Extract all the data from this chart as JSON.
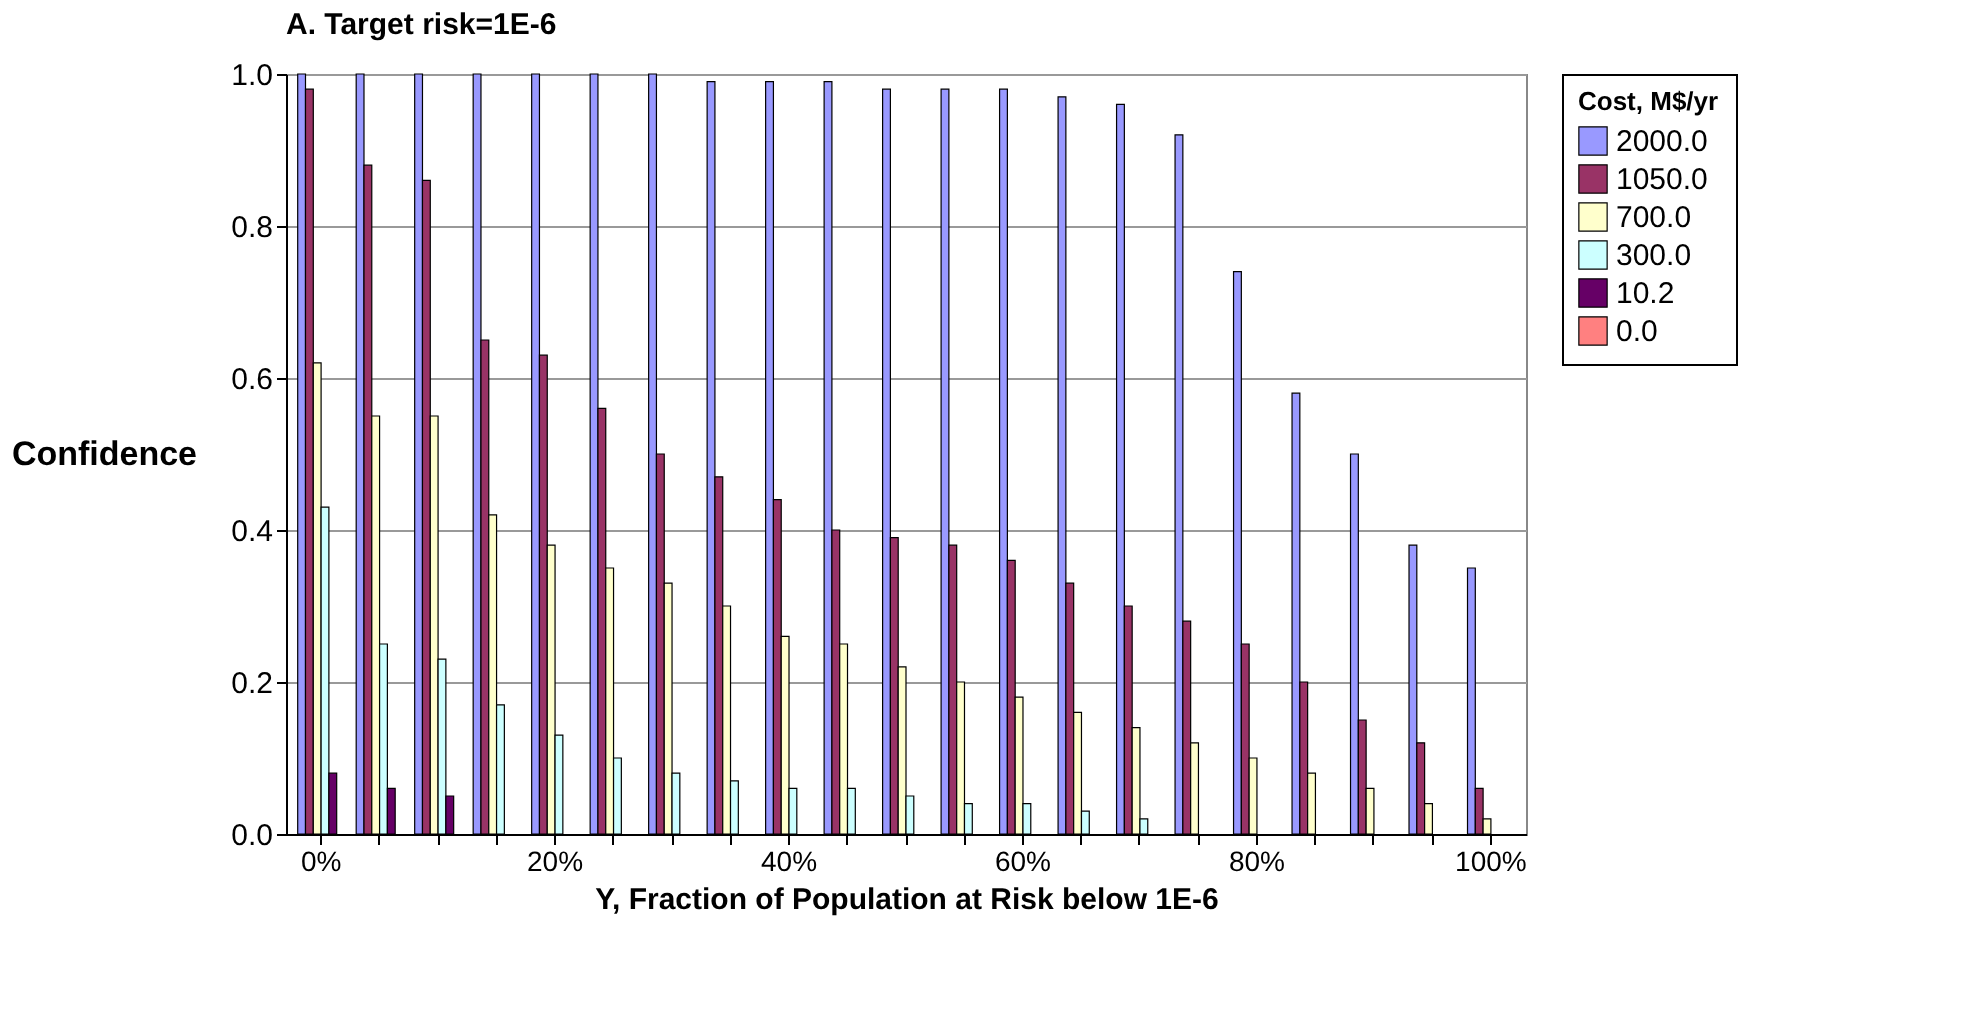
{
  "chart_data": {
    "type": "bar",
    "title": "A. Target risk=1E-6",
    "xlabel": "Y, Fraction of Population at Risk below 1E-6",
    "ylabel": "Confidence",
    "legend_title": "Cost, M$/yr",
    "categories": [
      "0%",
      null,
      null,
      null,
      "20%",
      null,
      null,
      null,
      "40%",
      null,
      null,
      null,
      "60%",
      null,
      null,
      null,
      "80%",
      null,
      null,
      null,
      "100%"
    ],
    "series": [
      {
        "name": "2000.0",
        "color": "#9999ff",
        "values": [
          1.0,
          1.0,
          1.0,
          1.0,
          1.0,
          1.0,
          1.0,
          0.99,
          0.99,
          0.99,
          0.98,
          0.98,
          0.98,
          0.97,
          0.96,
          0.92,
          0.74,
          0.58,
          0.5,
          0.38,
          0.35
        ]
      },
      {
        "name": "1050.0",
        "color": "#993366",
        "values": [
          0.98,
          0.88,
          0.86,
          0.65,
          0.63,
          0.56,
          0.5,
          0.47,
          0.44,
          0.4,
          0.39,
          0.38,
          0.36,
          0.33,
          0.3,
          0.28,
          0.25,
          0.2,
          0.15,
          0.12,
          0.06
        ]
      },
      {
        "name": "700.0",
        "color": "#ffffcc",
        "values": [
          0.62,
          0.55,
          0.55,
          0.42,
          0.38,
          0.35,
          0.33,
          0.3,
          0.26,
          0.25,
          0.22,
          0.2,
          0.18,
          0.16,
          0.14,
          0.12,
          0.1,
          0.08,
          0.06,
          0.04,
          0.02
        ]
      },
      {
        "name": "300.0",
        "color": "#ccffff",
        "values": [
          0.43,
          0.25,
          0.23,
          0.17,
          0.13,
          0.1,
          0.08,
          0.07,
          0.06,
          0.06,
          0.05,
          0.04,
          0.04,
          0.03,
          0.02,
          0.0,
          0.0,
          0.0,
          0.0,
          0.0,
          0.0
        ]
      },
      {
        "name": "10.2",
        "color": "#660066",
        "values": [
          0.08,
          0.06,
          0.05,
          0.0,
          0.0,
          0.0,
          0.0,
          0.0,
          0.0,
          0.0,
          0.0,
          0.0,
          0.0,
          0.0,
          0.0,
          0.0,
          0.0,
          0.0,
          0.0,
          0.0,
          0.0
        ]
      },
      {
        "name": "0.0",
        "color": "#ff8080",
        "values": [
          0.0,
          0.0,
          0.0,
          0.0,
          0.0,
          0.0,
          0.0,
          0.0,
          0.0,
          0.0,
          0.0,
          0.0,
          0.0,
          0.0,
          0.0,
          0.0,
          0.0,
          0.0,
          0.0,
          0.0,
          0.0
        ]
      }
    ],
    "ylim": [
      0,
      1
    ],
    "yticks": [
      {
        "value": 0,
        "label": "0.0"
      },
      {
        "value": 0.2,
        "label": "0.2"
      },
      {
        "value": 0.4,
        "label": "0.4"
      },
      {
        "value": 0.6,
        "label": "0.6"
      },
      {
        "value": 0.8,
        "label": "0.8"
      },
      {
        "value": 1,
        "label": "1.0"
      }
    ],
    "grid": "y",
    "legend": "right"
  }
}
